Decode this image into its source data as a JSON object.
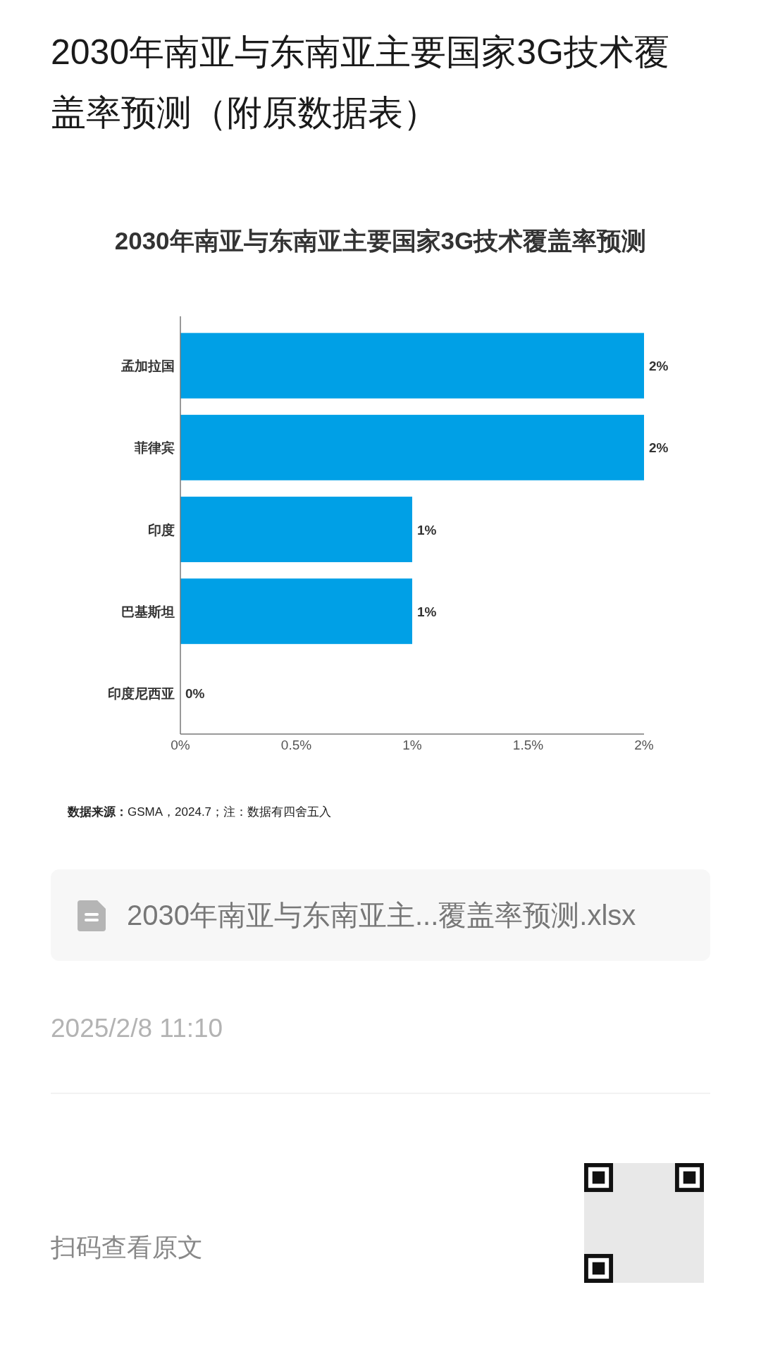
{
  "chart_data": {
    "type": "bar",
    "orientation": "horizontal",
    "title": "2030年南亚与东南亚主要国家3G技术覆盖率预测（附原数据表）",
    "subtitle": "2030年南亚与东南亚主要国家3G技术覆盖率预测",
    "categories": [
      "孟加拉国",
      "菲律宾",
      "印度",
      "巴基斯坦",
      "印度尼西亚"
    ],
    "values": [
      2,
      2,
      1,
      1,
      0
    ],
    "color": "#00a0e6",
    "value_labels": [
      "2%",
      "2%",
      "1%",
      "1%",
      "0%"
    ],
    "xlim": [
      0,
      2
    ],
    "xticks": [
      {
        "value": 0,
        "label": "0%"
      },
      {
        "value": 0.5,
        "label": "0.5%"
      },
      {
        "value": 1,
        "label": "1%"
      },
      {
        "value": 1.5,
        "label": "1.5%"
      },
      {
        "value": 2,
        "label": "2%"
      }
    ],
    "annotations": [
      "**数据来源：**GSMA，2024.7；注：数据有四舍五入",
      "2030年南亚与东南亚主...覆盖率预测.xlsx",
      "2025/2/8 11:10",
      "扫码查看原文"
    ]
  }
}
